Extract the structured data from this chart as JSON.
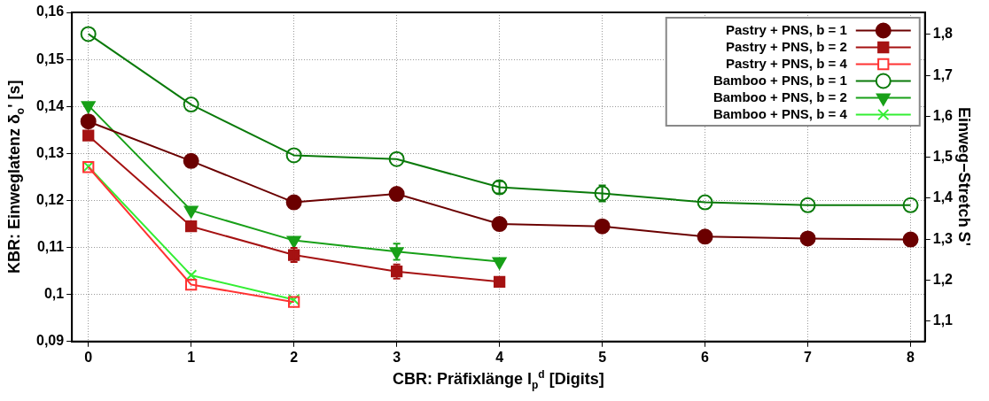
{
  "chart_data": {
    "type": "line",
    "xlabel": "CBR: Präfixlänge l$_{p}$$^{d}$ [Digits]",
    "ylabel": "KBR: Einweglatenz δ$_{o}$' [s]",
    "y2label": "Einweg−Stretch S'",
    "x": [
      0,
      1,
      2,
      3,
      4,
      5,
      6,
      7,
      8
    ],
    "xlim": [
      -0.16,
      8.14
    ],
    "xticks": [
      0,
      1,
      2,
      3,
      4,
      5,
      6,
      7,
      8
    ],
    "ylim": [
      0.09,
      0.16
    ],
    "yticks": [
      {
        "value": 0.09,
        "label": "0,09"
      },
      {
        "value": 0.1,
        "label": "0,1"
      },
      {
        "value": 0.11,
        "label": "0,11"
      },
      {
        "value": 0.12,
        "label": "0,12"
      },
      {
        "value": 0.13,
        "label": "0,13"
      },
      {
        "value": 0.14,
        "label": "0,14"
      },
      {
        "value": 0.15,
        "label": "0,15"
      },
      {
        "value": 0.16,
        "label": "0,16"
      }
    ],
    "y2lim": [
      1.05,
      1.854
    ],
    "y2ticks": [
      {
        "value": 1.1,
        "label": "1,1"
      },
      {
        "value": 1.2,
        "label": "1,2"
      },
      {
        "value": 1.3,
        "label": "1,3"
      },
      {
        "value": 1.4,
        "label": "1,4"
      },
      {
        "value": 1.5,
        "label": "1,5"
      },
      {
        "value": 1.6,
        "label": "1,6"
      },
      {
        "value": 1.7,
        "label": "1,7"
      },
      {
        "value": 1.8,
        "label": "1,8"
      }
    ],
    "grid": true,
    "legend": "top right",
    "line_style": "solid",
    "series": [
      {
        "name": "Pastry + PNS, b = 1",
        "color": "#6b0000",
        "marker": "circle",
        "values": [
          0.1368,
          0.1284,
          0.1196,
          0.1214,
          0.115,
          0.1145,
          0.1123,
          0.1119,
          0.1117
        ]
      },
      {
        "name": "Pastry + PNS, b = 2",
        "color": "#a51212",
        "marker": "square",
        "values": [
          0.1338,
          0.1145,
          0.1084,
          0.1049,
          0.1027,
          null,
          null,
          null,
          null
        ],
        "errors": [
          null,
          null,
          0.0015,
          0.0015,
          null,
          null,
          null,
          null,
          null
        ]
      },
      {
        "name": "Pastry + PNS, b = 4",
        "color": "#ff3333",
        "marker": "square-open",
        "values": [
          0.1271,
          0.1021,
          0.0984,
          null,
          null,
          null,
          null,
          null,
          null
        ]
      },
      {
        "name": "Bamboo + PNS, b = 1",
        "color": "#0a7a0a",
        "marker": "circle-open",
        "values": [
          0.1554,
          0.1404,
          0.1296,
          0.1288,
          0.1228,
          0.1215,
          0.1196,
          0.119,
          0.119
        ],
        "errors": [
          null,
          null,
          null,
          null,
          0.0013,
          0.0017,
          null,
          null,
          null
        ]
      },
      {
        "name": "Bamboo + PNS, b = 2",
        "color": "#18a018",
        "marker": "triangle-down",
        "values": [
          0.1402,
          0.1179,
          0.1115,
          0.1091,
          0.107,
          null,
          null,
          null,
          null
        ],
        "errors": [
          null,
          null,
          null,
          0.0017,
          null,
          null,
          null,
          null,
          null
        ]
      },
      {
        "name": "Bamboo + PNS, b = 4",
        "color": "#33ee33",
        "marker": "cross",
        "values": [
          0.1272,
          0.1041,
          0.0989,
          null,
          null,
          null,
          null,
          null,
          null
        ]
      }
    ]
  }
}
